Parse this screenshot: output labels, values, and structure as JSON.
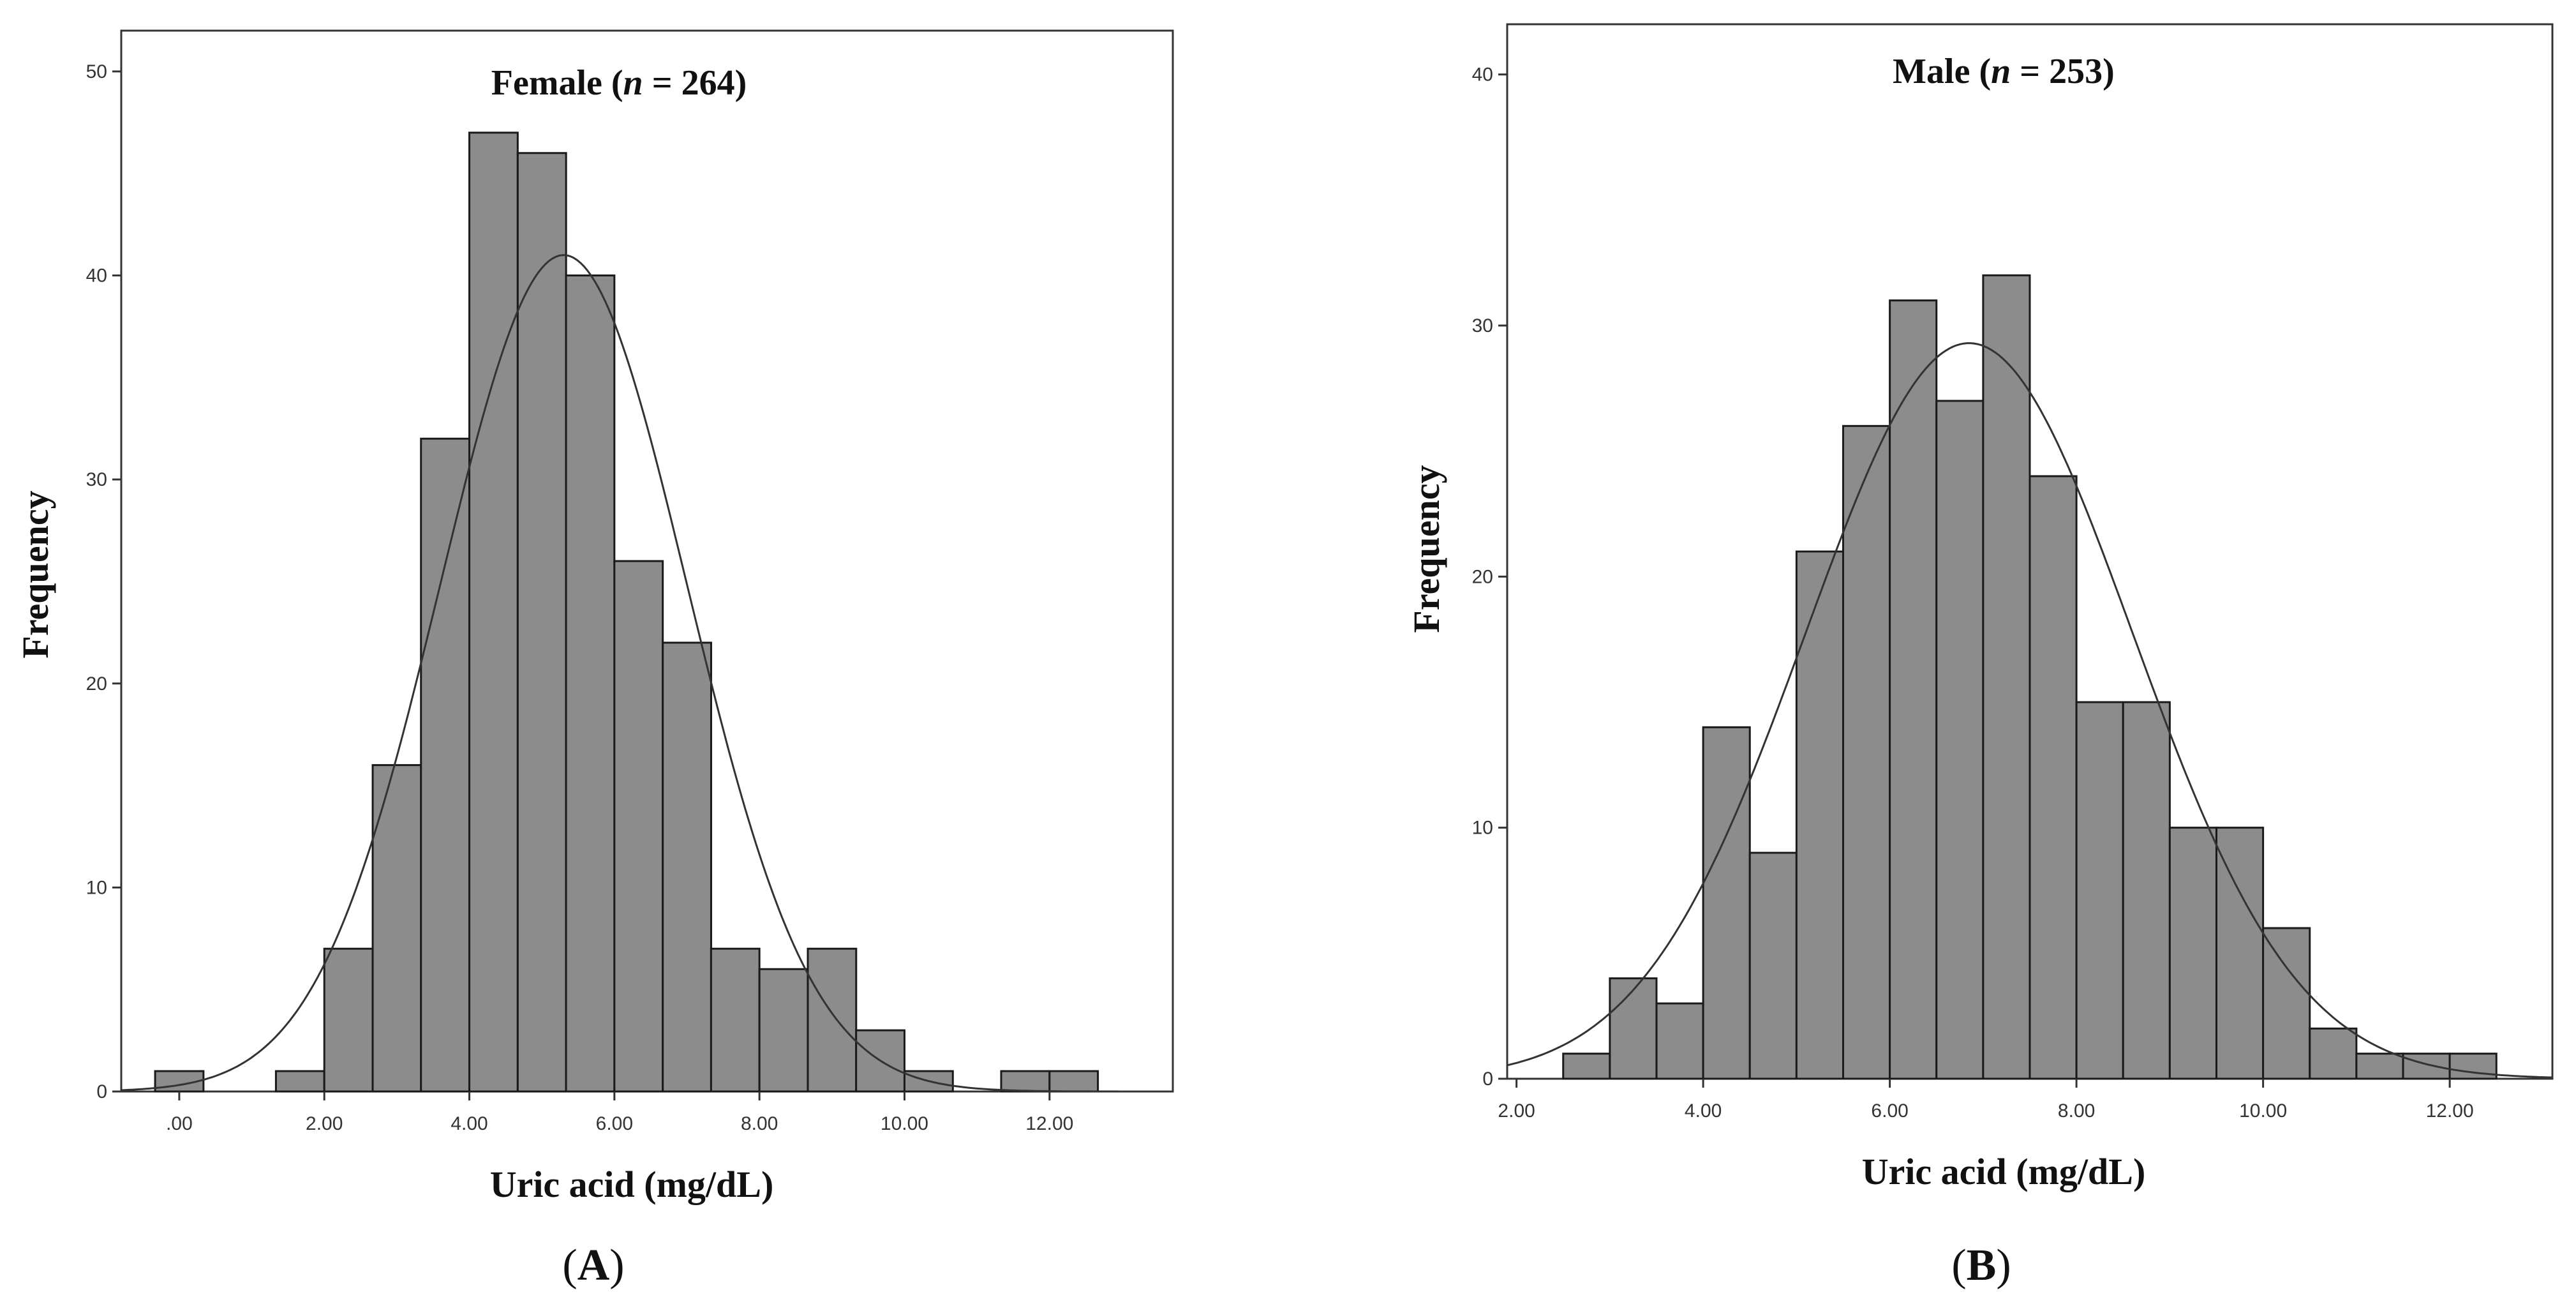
{
  "colors": {
    "bar_fill": "#8c8c8c",
    "bar_stroke": "#1a1a1a",
    "curve": "#333333",
    "frame": "#333333"
  },
  "chart_data": [
    {
      "type": "bar",
      "subtype": "histogram-with-normal-curve",
      "title_prefix": "Female (",
      "title_n": "n",
      "title_suffix": " = 264)",
      "xlabel": "Uric acid (mg/dL)",
      "ylabel": "Frequency",
      "panel_label": "A",
      "xlim": [
        -0.8,
        13.7
      ],
      "ylim": [
        0,
        52
      ],
      "x_ticks": [
        0,
        2,
        4,
        6,
        8,
        10,
        12
      ],
      "x_tick_labels": [
        ".00",
        "2.00",
        "4.00",
        "6.00",
        "8.00",
        "10.00",
        "12.00"
      ],
      "y_ticks": [
        0,
        10,
        20,
        30,
        40,
        50
      ],
      "y_tick_labels": [
        "0",
        "10",
        "20",
        "30",
        "40",
        "50"
      ],
      "bin_width": 0.667,
      "bin_starts": [
        -0.333,
        1.333,
        2.0,
        2.667,
        3.333,
        4.0,
        4.667,
        5.333,
        6.0,
        6.667,
        7.333,
        8.0,
        8.667,
        9.333,
        10.0,
        11.333,
        12.0
      ],
      "values": [
        1,
        1,
        7,
        16,
        32,
        47,
        46,
        40,
        26,
        22,
        7,
        6,
        7,
        3,
        1,
        1,
        1
      ],
      "normal_curve": {
        "mean": 5.3,
        "sd": 1.7,
        "peak": 41
      }
    },
    {
      "type": "bar",
      "subtype": "histogram-with-normal-curve",
      "title_prefix": "Male (",
      "title_n": "n",
      "title_suffix": " = 253)",
      "xlabel": "Uric acid (mg/dL)",
      "ylabel": "Frequency",
      "panel_label": "B",
      "xlim": [
        1.9,
        13.1
      ],
      "ylim": [
        0,
        42
      ],
      "x_ticks": [
        2,
        4,
        6,
        8,
        10,
        12
      ],
      "x_tick_labels": [
        "2.00",
        "4.00",
        "6.00",
        "8.00",
        "10.00",
        "12.00"
      ],
      "y_ticks": [
        0,
        10,
        20,
        30,
        40
      ],
      "y_tick_labels": [
        "0",
        "10",
        "20",
        "30",
        "40"
      ],
      "bin_width": 0.5,
      "bin_starts": [
        2.5,
        3.0,
        3.5,
        4.0,
        4.5,
        5.0,
        5.5,
        6.0,
        6.5,
        7.0,
        7.5,
        8.0,
        8.5,
        9.0,
        9.5,
        10.0,
        10.5,
        11.0,
        11.5,
        12.0
      ],
      "values": [
        1,
        4,
        3,
        14,
        9,
        21,
        26,
        31,
        27,
        32,
        24,
        15,
        15,
        10,
        10,
        6,
        2,
        1,
        1,
        1
      ],
      "normal_curve": {
        "mean": 6.85,
        "sd": 1.75,
        "peak": 29.3
      }
    }
  ]
}
